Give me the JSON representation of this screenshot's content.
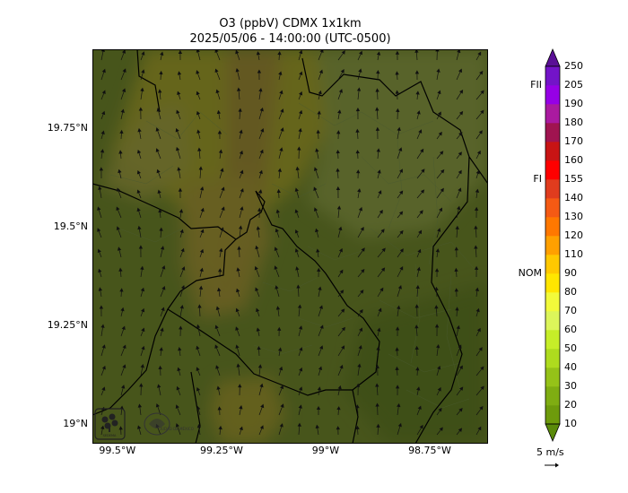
{
  "header": {
    "title": "O3 (ppbV) CDMX 1x1km",
    "subtitle": "2025/05/06 - 14:00:00 (UTC-0500)"
  },
  "map": {
    "lon_range": [
      -99.56,
      -98.61
    ],
    "lat_range": [
      18.95,
      19.95
    ],
    "lat_ticks": [
      {
        "value": 19.75,
        "label": "19.75°N"
      },
      {
        "value": 19.5,
        "label": "19.5°N"
      },
      {
        "value": 19.25,
        "label": "19.25°N"
      },
      {
        "value": 19.0,
        "label": "19°N"
      }
    ],
    "lon_ticks": [
      {
        "value": -99.5,
        "label": "99.5°W"
      },
      {
        "value": -99.25,
        "label": "99.25°W"
      },
      {
        "value": -99.0,
        "label": "99°W"
      },
      {
        "value": -98.75,
        "label": "98.75°W"
      }
    ],
    "base_fill_color": "#9dbb3c",
    "ozone_zones": [
      {
        "name": "plume-north-band",
        "ppb": 70,
        "color": "#e8e33a"
      },
      {
        "name": "plume-core",
        "ppb": 85,
        "color": "#dcc04a"
      },
      {
        "name": "plume-center-west",
        "ppb": 75,
        "color": "#e4d24a"
      },
      {
        "name": "plume-west-lobe",
        "ppb": 65,
        "color": "#e0e05a"
      },
      {
        "name": "plume-south",
        "ppb": 72,
        "color": "#e2d640"
      },
      {
        "name": "east-moderate",
        "ppb": 55,
        "color": "#c8e060"
      },
      {
        "name": "southeast-low",
        "ppb": 40,
        "color": "#88ac30"
      }
    ],
    "logos": [
      {
        "name": "sedema-logo",
        "text": "SEDEMA"
      },
      {
        "name": "cdmx-logo",
        "text": "CIUDAD DE MÉXICO"
      }
    ]
  },
  "colorbar": {
    "levels": [
      10,
      20,
      30,
      40,
      50,
      60,
      70,
      80,
      90,
      110,
      120,
      130,
      140,
      155,
      160,
      170,
      180,
      190,
      205,
      250
    ],
    "colors": [
      "#6e9b0c",
      "#7fad12",
      "#95c218",
      "#aedb1e",
      "#c6ee28",
      "#dcf55a",
      "#f2fa3a",
      "#ffe600",
      "#ffc800",
      "#ffa000",
      "#ff7800",
      "#f55a14",
      "#e03c1e",
      "#ff0000",
      "#c81414",
      "#a01450",
      "#aa1aa0",
      "#9600e6",
      "#7314c8"
    ],
    "extend_colors": {
      "min": "#5a8a0a",
      "max": "#5a1096"
    },
    "thresholds": [
      {
        "label": "NOM",
        "value": 90
      },
      {
        "label": "FI",
        "value": 155
      },
      {
        "label": "FII",
        "value": 205
      }
    ]
  },
  "wind_reference": {
    "speed_label": "5 m/s"
  }
}
